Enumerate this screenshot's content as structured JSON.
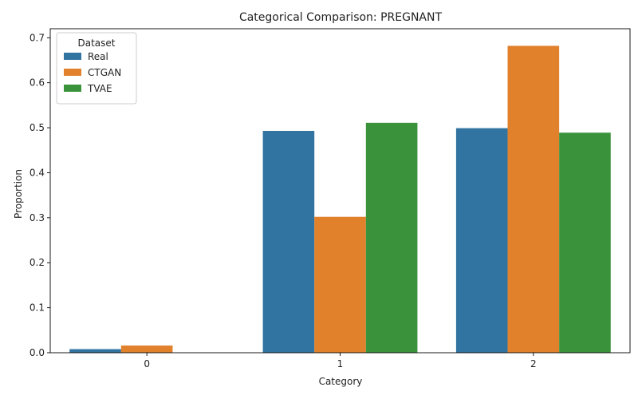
{
  "chart_data": {
    "type": "bar",
    "title": "Categorical Comparison: PREGNANT",
    "xlabel": "Category",
    "ylabel": "Proportion",
    "categories": [
      "0",
      "1",
      "2"
    ],
    "ylim": [
      0,
      0.72
    ],
    "yticks": [
      0.0,
      0.1,
      0.2,
      0.3,
      0.4,
      0.5,
      0.6,
      0.7
    ],
    "ytick_labels": [
      "0.0",
      "0.1",
      "0.2",
      "0.3",
      "0.4",
      "0.5",
      "0.6",
      "0.7"
    ],
    "grid": false,
    "legend": {
      "title": "Dataset",
      "placement": "top-left"
    },
    "series": [
      {
        "name": "Real",
        "color": "#3274a1",
        "values": [
          0.008,
          0.493,
          0.499
        ]
      },
      {
        "name": "CTGAN",
        "color": "#e1812c",
        "values": [
          0.016,
          0.302,
          0.682
        ]
      },
      {
        "name": "TVAE",
        "color": "#3a923a",
        "values": [
          0.0,
          0.511,
          0.489
        ]
      }
    ]
  }
}
